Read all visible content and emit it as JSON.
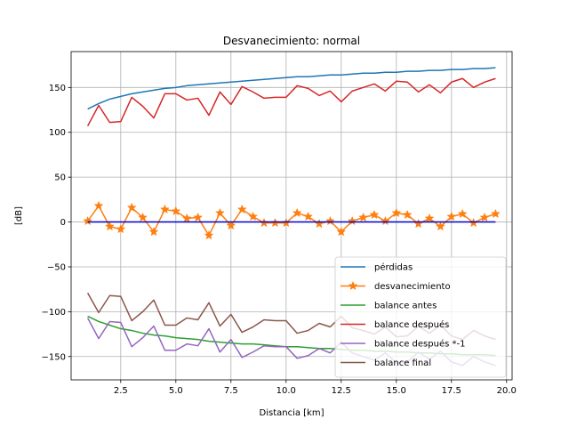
{
  "chart_data": {
    "type": "line",
    "title": "Desvanecimiento: normal",
    "xlabel": "Distancia [km]",
    "ylabel": "[dB]",
    "xlim": [
      0.25,
      20.25
    ],
    "ylim": [
      -176,
      190
    ],
    "xticks": [
      2.5,
      5.0,
      7.5,
      10.0,
      12.5,
      15.0,
      17.5,
      20.0
    ],
    "xtick_labels": [
      "2.5",
      "5.0",
      "7.5",
      "10.0",
      "12.5",
      "15.0",
      "17.5",
      "20.0"
    ],
    "yticks": [
      -150,
      -100,
      -50,
      0,
      50,
      100,
      150
    ],
    "ytick_labels": [
      "−150",
      "−100",
      "−50",
      "0",
      "50",
      "100",
      "150"
    ],
    "grid": true,
    "legend_position": "lower-right",
    "x": [
      1.0,
      1.5,
      2.0,
      2.5,
      3.0,
      3.5,
      4.0,
      4.5,
      5.0,
      5.5,
      6.0,
      6.5,
      7.0,
      7.5,
      8.0,
      8.5,
      9.0,
      9.5,
      10.0,
      10.5,
      11.0,
      11.5,
      12.0,
      12.5,
      13.0,
      13.5,
      14.0,
      14.5,
      15.0,
      15.5,
      16.0,
      16.5,
      17.0,
      17.5,
      18.0,
      18.5,
      19.0,
      19.5
    ],
    "series": [
      {
        "name": "pérdidas",
        "color": "#1f77b4",
        "marker": "none",
        "values": [
          126,
          132,
          137,
          140,
          143,
          145,
          147,
          149,
          150,
          152,
          153,
          154,
          155,
          156,
          157,
          158,
          159,
          160,
          161,
          162,
          162,
          163,
          164,
          164,
          165,
          166,
          166,
          167,
          167,
          168,
          168,
          169,
          169,
          170,
          170,
          171,
          171,
          172
        ]
      },
      {
        "name": "desvanecimiento",
        "color": "#ff7f0e",
        "marker": "star",
        "values": [
          1,
          18,
          -5,
          -8,
          16,
          5,
          -11,
          14,
          12,
          4,
          5,
          -15,
          10,
          -4,
          14,
          6,
          -1,
          -1,
          -1,
          10,
          6,
          -2,
          1,
          -11,
          1,
          5,
          8,
          1,
          10,
          8,
          -2,
          4,
          -5,
          6,
          9,
          -1,
          5,
          9
        ]
      },
      {
        "name": "balance antes",
        "color": "#2ca02c",
        "marker": "none",
        "values": [
          -105,
          -111,
          -115,
          -119,
          -121,
          -124,
          -126,
          -127,
          -129,
          -130,
          -131,
          -133,
          -134,
          -135,
          -136,
          -136,
          -137,
          -138,
          -139,
          -139,
          -140,
          -141,
          -141,
          -142,
          -143,
          -143,
          -144,
          -144,
          -145,
          -145,
          -146,
          -146,
          -147,
          -147,
          -148,
          -148,
          -148,
          -149
        ]
      },
      {
        "name": "balance después",
        "color": "#d62728",
        "marker": "none",
        "values": [
          107,
          130,
          111,
          112,
          139,
          129,
          116,
          143,
          143,
          136,
          138,
          119,
          145,
          131,
          151,
          145,
          138,
          139,
          139,
          152,
          149,
          141,
          146,
          134,
          146,
          150,
          154,
          146,
          157,
          156,
          145,
          153,
          144,
          156,
          160,
          150,
          156,
          160
        ]
      },
      {
        "name": "balance después *-1",
        "color": "#9467bd",
        "marker": "none",
        "values": [
          -107,
          -130,
          -111,
          -112,
          -139,
          -129,
          -116,
          -143,
          -143,
          -136,
          -138,
          -119,
          -145,
          -131,
          -151,
          -145,
          -138,
          -139,
          -139,
          -152,
          -149,
          -141,
          -146,
          -134,
          -146,
          -150,
          -154,
          -146,
          -157,
          -156,
          -145,
          -153,
          -144,
          -156,
          -160,
          -150,
          -156,
          -160
        ]
      },
      {
        "name": "balance final",
        "color": "#8c564b",
        "marker": "none",
        "values": [
          -79,
          -101,
          -82,
          -83,
          -110,
          -100,
          -87,
          -115,
          -115,
          -107,
          -109,
          -90,
          -116,
          -103,
          -123,
          -117,
          -109,
          -110,
          -110,
          -124,
          -121,
          -113,
          -117,
          -105,
          -118,
          -121,
          -125,
          -117,
          -128,
          -127,
          -116,
          -124,
          -115,
          -127,
          -131,
          -121,
          -127,
          -131
        ]
      }
    ],
    "reference_line": {
      "color": "#0000cd",
      "y": 0,
      "x_range": [
        1.0,
        19.5
      ]
    }
  }
}
